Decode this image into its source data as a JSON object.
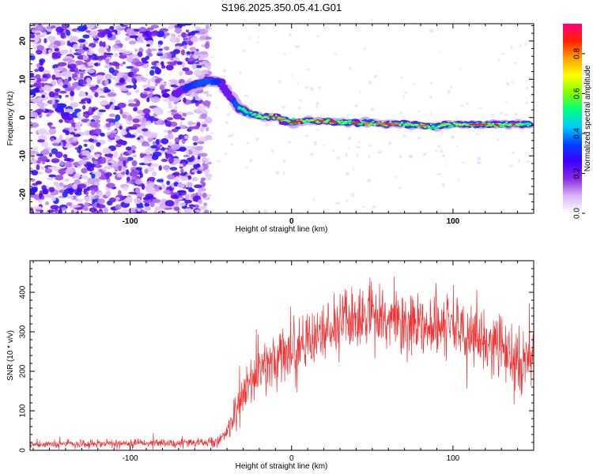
{
  "figure_title": "S196.2025.350.05.41.G01",
  "chart_data": [
    {
      "type": "heatmap",
      "title": "S196.2025.350.05.41.G01",
      "xlabel": "Height of straight line (km)",
      "ylabel": "Frequency (Hz)",
      "xlim": [
        -162,
        150
      ],
      "ylim": [
        -25,
        24.5
      ],
      "xticks": [
        -100,
        0,
        100
      ],
      "xtick_labels": [
        "-100",
        "0",
        "100"
      ],
      "yticks": [
        -20,
        -10,
        0,
        10,
        20
      ],
      "ytick_labels": [
        "-20",
        "-10",
        "0",
        "10",
        "20"
      ],
      "colorbar": {
        "label": "Normalized spectral amplitude",
        "range": [
          0.0,
          0.95
        ],
        "ticks": [
          0.0,
          0.2,
          0.4,
          0.6,
          0.8
        ],
        "tick_labels": [
          "0.0",
          "0.2",
          "0.4",
          "0.6",
          "0.8"
        ],
        "colormap": [
          "#ffffff",
          "#d8b8f8",
          "#8a2be2",
          "#4000ff",
          "#0040ff",
          "#00c8ff",
          "#00ff80",
          "#80ff00",
          "#ffff00",
          "#ffa000",
          "#ff2000",
          "#ff0080"
        ]
      },
      "noise_region_x": [
        -162,
        -57
      ],
      "ridge": {
        "x": [
          -72,
          -66,
          -60,
          -55,
          -50,
          -45,
          -41,
          -37,
          -33,
          -29,
          -25,
          -21,
          -17,
          -13,
          -9,
          -5,
          0,
          5,
          10,
          20,
          30,
          40,
          50,
          60,
          70,
          80,
          85,
          90,
          95,
          100,
          110,
          120,
          130,
          140,
          148
        ],
        "y": [
          6,
          7.5,
          8.5,
          9.2,
          9.6,
          9.3,
          7.2,
          4.8,
          2.8,
          1.6,
          0.9,
          0.4,
          0.1,
          0.2,
          0.0,
          -0.6,
          -1.4,
          -1.0,
          -0.6,
          -1.0,
          -1.2,
          -1.4,
          -1.5,
          -1.7,
          -1.8,
          -2.0,
          -2.3,
          -2.4,
          -2.0,
          -1.7,
          -1.8,
          -1.8,
          -1.9,
          -1.7,
          -1.8
        ],
        "peak_amplitude": [
          0.3,
          0.35,
          0.38,
          0.42,
          0.4,
          0.35,
          0.3,
          0.35,
          0.45,
          0.55,
          0.6,
          0.7,
          0.8,
          0.9,
          0.85,
          0.8,
          0.75,
          0.8,
          0.9,
          0.85,
          0.8,
          0.75,
          0.8,
          0.9,
          0.85,
          0.8,
          0.7,
          0.6,
          0.75,
          0.85,
          0.9,
          0.85,
          0.8,
          0.75,
          0.7
        ]
      }
    },
    {
      "type": "line",
      "xlabel": "Height of straight line (km)",
      "ylabel": "SNR (10 * v/v)",
      "xlim": [
        -162,
        150
      ],
      "ylim": [
        0,
        480
      ],
      "xticks": [
        -100,
        0,
        100
      ],
      "xtick_labels": [
        "-100",
        "0",
        "100"
      ],
      "yticks": [
        0,
        100,
        200,
        300,
        400
      ],
      "ytick_labels": [
        "0",
        "100",
        "200",
        "300",
        "400"
      ],
      "color": "#ee3333",
      "envelope": {
        "x": [
          -162,
          -120,
          -80,
          -50,
          -45,
          -40,
          -35,
          -30,
          -25,
          -20,
          -15,
          -10,
          -5,
          0,
          10,
          20,
          30,
          40,
          50,
          60,
          70,
          80,
          90,
          100,
          110,
          120,
          130,
          135,
          140,
          143,
          146,
          150
        ],
        "mean": [
          15,
          17,
          18,
          20,
          25,
          45,
          90,
          140,
          170,
          200,
          220,
          230,
          240,
          250,
          275,
          300,
          320,
          330,
          335,
          330,
          325,
          315,
          310,
          300,
          290,
          280,
          265,
          240,
          215,
          200,
          230,
          260
        ],
        "spread": [
          9,
          9,
          10,
          10,
          15,
          25,
          45,
          60,
          65,
          70,
          70,
          70,
          70,
          70,
          70,
          70,
          70,
          70,
          70,
          70,
          70,
          70,
          70,
          70,
          70,
          70,
          70,
          75,
          75,
          80,
          80,
          80
        ]
      }
    }
  ]
}
